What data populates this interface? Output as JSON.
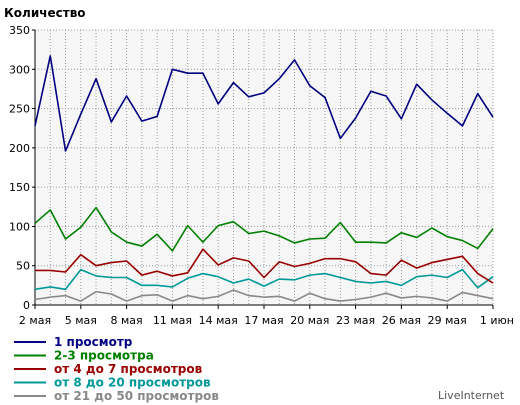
{
  "chart_data": {
    "type": "line",
    "ylabel": "Количество",
    "ylim": [
      0,
      350
    ],
    "yticks": [
      0,
      50,
      100,
      150,
      200,
      250,
      300,
      350
    ],
    "xtick_labels": [
      "2 мая",
      "5 мая",
      "8 мая",
      "11 мая",
      "14 мая",
      "17 мая",
      "20 мая",
      "23 мая",
      "26 мая",
      "29 мая",
      "1 июн"
    ],
    "xtick_positions": [
      0,
      3,
      6,
      9,
      12,
      15,
      18,
      21,
      24,
      27,
      30
    ],
    "x_count": 31,
    "grid": true,
    "legend_position": "bottom-left",
    "brand": "LiveInternet",
    "series": [
      {
        "name": "1 просмотр",
        "color": "#000080",
        "values": [
          228,
          317,
          196,
          243,
          288,
          233,
          266,
          234,
          240,
          300,
          295,
          295,
          256,
          283,
          265,
          270,
          288,
          312,
          279,
          264,
          212,
          238,
          272,
          266,
          237,
          281,
          261,
          244,
          228,
          269,
          239
        ]
      },
      {
        "name": "2-3 просмотра",
        "color": "#008000",
        "values": [
          104,
          121,
          84,
          99,
          124,
          93,
          80,
          75,
          90,
          69,
          101,
          80,
          101,
          106,
          91,
          94,
          88,
          79,
          84,
          85,
          105,
          80,
          80,
          79,
          92,
          86,
          98,
          87,
          82,
          72,
          97
        ]
      },
      {
        "name": "от 4 до 7 просмотров",
        "color": "#990000",
        "values": [
          44,
          44,
          42,
          64,
          50,
          54,
          56,
          38,
          43,
          37,
          41,
          71,
          51,
          60,
          56,
          35,
          55,
          49,
          53,
          59,
          59,
          55,
          40,
          38,
          57,
          47,
          54,
          58,
          62,
          40,
          28
        ]
      },
      {
        "name": "от 8 до 20 просмотров",
        "color": "#009999",
        "values": [
          20,
          23,
          20,
          45,
          37,
          35,
          35,
          25,
          25,
          23,
          34,
          40,
          36,
          28,
          33,
          24,
          33,
          32,
          38,
          40,
          35,
          30,
          28,
          30,
          25,
          36,
          38,
          35,
          45,
          22,
          36
        ]
      },
      {
        "name": "от 21 до 50 просмотров",
        "color": "#888888",
        "values": [
          7,
          10,
          12,
          5,
          17,
          14,
          5,
          12,
          13,
          5,
          12,
          8,
          11,
          19,
          12,
          10,
          11,
          5,
          15,
          8,
          5,
          7,
          10,
          15,
          9,
          11,
          9,
          5,
          16,
          12,
          8
        ]
      }
    ]
  }
}
